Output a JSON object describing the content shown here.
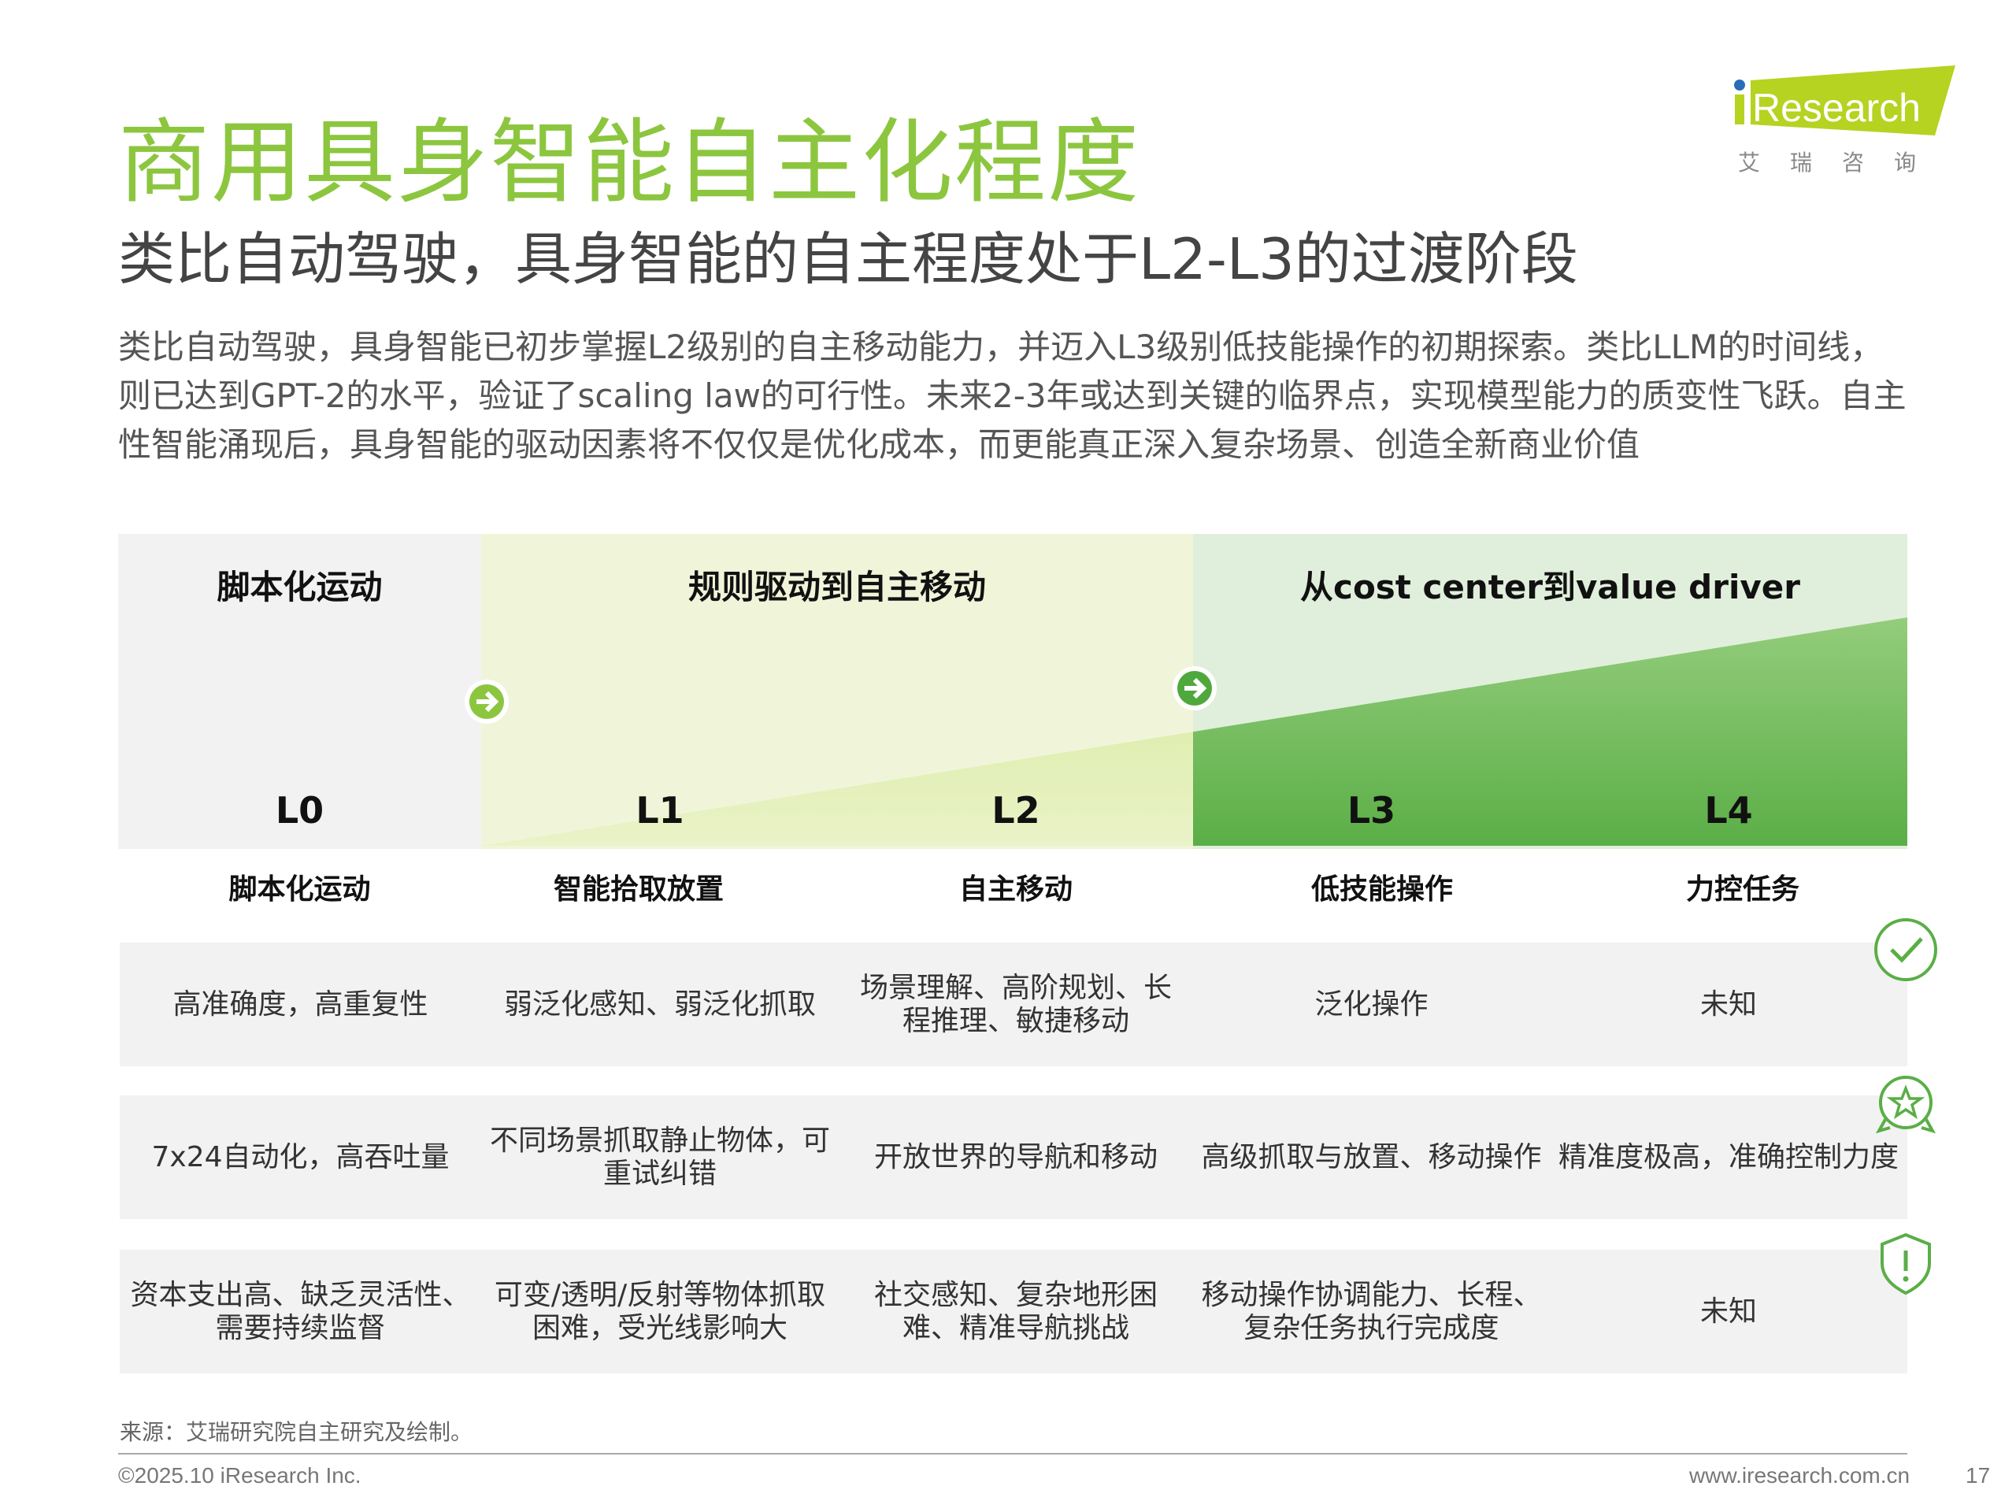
{
  "header": {
    "title": "商用具身智能自主化程度",
    "subtitle": "类比自动驾驶，具身智能的自主程度处于L2-L3的过渡阶段",
    "logo_text": "iResearch",
    "logo_cn": "艾 瑞 咨 询"
  },
  "intro": "类比自动驾驶，具身智能已初步掌握L2级别的自主移动能力，并迈入L3级别低技能操作的初期探索。类比LLM的时间线，则已达到GPT-2的水平，验证了scaling law的可行性。未来2-3年或达到关键的临界点，实现模型能力的质变性飞跃。自主性智能涌现后，具身智能的驱动因素将不仅仅是优化成本，而更能真正深入复杂场景、创造全新商业价值",
  "phases": [
    "脚本化运动",
    "规则驱动到自主移动",
    "从cost center到value driver"
  ],
  "levels": [
    {
      "code": "L0",
      "name": "脚本化运动"
    },
    {
      "code": "L1",
      "name": "智能拾取放置"
    },
    {
      "code": "L2",
      "name": "自主移动"
    },
    {
      "code": "L3",
      "name": "低技能操作"
    },
    {
      "code": "L4",
      "name": "力控任务"
    }
  ],
  "rows": [
    {
      "icon": "check-circle-icon",
      "cells": [
        "高准确度，高重复性",
        "弱泛化感知、弱泛化抓取",
        "场景理解、高阶规划、长程推理、敏捷移动",
        "泛化操作",
        "未知"
      ]
    },
    {
      "icon": "star-badge-icon",
      "cells": [
        "7x24自动化，高吞吐量",
        "不同场景抓取静止物体，可重试纠错",
        "开放世界的导航和移动",
        "高级抓取与放置、移动操作",
        "精准度极高，准确控制力度"
      ]
    },
    {
      "icon": "shield-alert-icon",
      "cells": [
        "资本支出高、缺乏灵活性、需要持续监督",
        "可变/透明/反射等物体抓取困难，受光线影响大",
        "社交感知、复杂地形困难、精准导航挑战",
        "移动操作协调能力、长程、复杂任务执行完成度",
        "未知"
      ]
    }
  ],
  "footer": {
    "source": "来源：艾瑞研究院自主研究及绘制。",
    "copyright": "©2025.10 iResearch Inc.",
    "website": "www.iresearch.com.cn",
    "page": "17"
  },
  "colors": {
    "accent": "#8cc63f",
    "green_dark": "#5aae46",
    "logo_green": "#b5d320",
    "logo_blue": "#2b6cb8"
  }
}
